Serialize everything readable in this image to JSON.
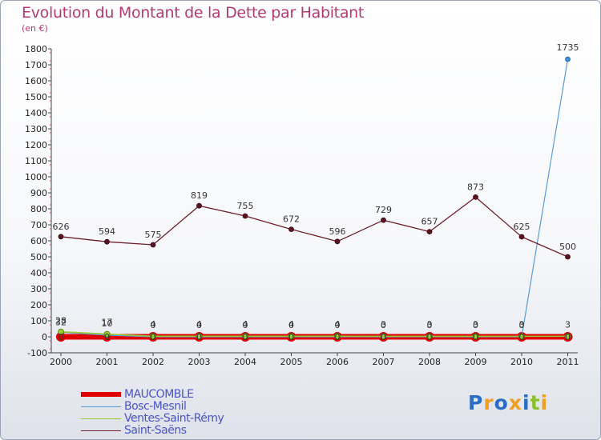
{
  "chart_data": {
    "type": "line",
    "title": "Evolution du Montant de la Dette par Habitant",
    "subtitle": "(en €)",
    "categories": [
      "2000",
      "2001",
      "2002",
      "2003",
      "2004",
      "2005",
      "2006",
      "2007",
      "2008",
      "2009",
      "2010",
      "2011"
    ],
    "ylim": [
      -100,
      1800
    ],
    "yticks": [
      -100,
      0,
      100,
      200,
      300,
      400,
      500,
      600,
      700,
      800,
      900,
      1000,
      1100,
      1200,
      1300,
      1400,
      1500,
      1600,
      1700,
      1800
    ],
    "grid": false,
    "legend_position": "bottom-left",
    "series": [
      {
        "name": "MAUCOMBLE",
        "color": "#e00000",
        "values": [
          0,
          0,
          0,
          0,
          0,
          0,
          0,
          0,
          0,
          0,
          0,
          0
        ],
        "labels": [
          "0",
          "0",
          "0",
          "0",
          "0",
          "0",
          "0",
          "0",
          "0",
          "0",
          "0",
          "0"
        ]
      },
      {
        "name": "Bosc-Mesnil",
        "color": "#5b9bd5",
        "values": [
          28,
          10,
          0,
          0,
          0,
          0,
          0,
          0,
          0,
          0,
          0,
          1735
        ],
        "labels": [
          "28",
          "10",
          "0",
          "0",
          "0",
          "0",
          "0",
          "0",
          "0",
          "0",
          "0",
          "1735"
        ]
      },
      {
        "name": "Ventes-Saint-Rémy",
        "color": "#99cc33",
        "values": [
          32,
          17,
          4,
          4,
          4,
          4,
          4,
          3,
          3,
          3,
          3,
          3
        ],
        "labels": [
          "32",
          "17",
          "4",
          "4",
          "4",
          "4",
          "4",
          "3",
          "3",
          "3",
          "3",
          "3"
        ]
      },
      {
        "name": "Saint-Saëns",
        "color": "#6e1f2a",
        "values": [
          626,
          594,
          575,
          819,
          755,
          672,
          596,
          729,
          657,
          873,
          625,
          500
        ],
        "labels": [
          "626",
          "594",
          "575",
          "819",
          "755",
          "672",
          "596",
          "729",
          "657",
          "873",
          "625",
          "500"
        ]
      }
    ]
  },
  "logo": {
    "text": "Proxiti",
    "letter_colors": [
      "#2b6cc4",
      "#f0a020",
      "#2b6cc4",
      "#f0a020",
      "#2b6cc4",
      "#8bbf2c",
      "#f0a020"
    ]
  }
}
